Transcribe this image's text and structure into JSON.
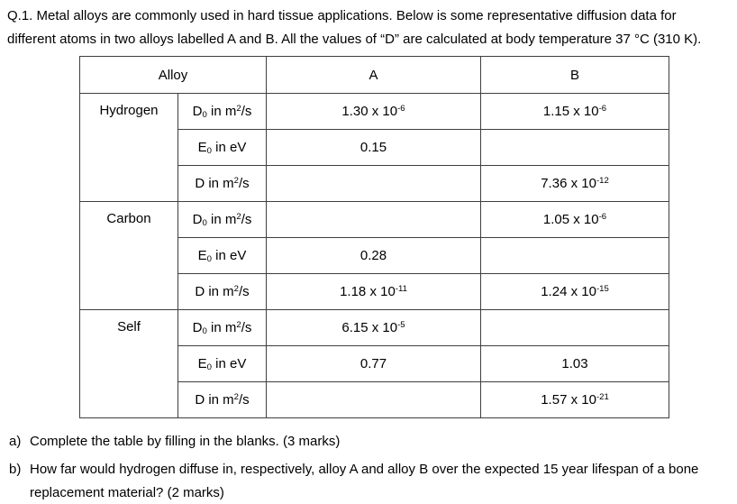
{
  "page": {
    "background_color": "#ffffff",
    "text_color": "#000000",
    "table_border_color": "#3f3f3f"
  },
  "intro": {
    "lines": [
      "Q.1. Metal alloys are commonly used in hard tissue applications. Below is some representative diffusion data for",
      "different atoms in two alloys labelled A and B. All the values of “D” are calculated at body temperature 37 °C (310 K)."
    ]
  },
  "table": {
    "header": {
      "alloy_label": "Alloy",
      "col_a_label": "A",
      "col_b_label": "B"
    },
    "groups": [
      {
        "element": "Hydrogen",
        "rows": [
          {
            "property": [
              {
                "t": "D"
              },
              {
                "sub": "0"
              },
              {
                "t": " in m"
              },
              {
                "sup": "2"
              },
              {
                "t": "/s"
              }
            ],
            "a": [
              {
                "t": "1.30 x 10"
              },
              {
                "sup": "-6"
              }
            ],
            "b": [
              {
                "t": "1.15 x 10"
              },
              {
                "sup": "-6"
              }
            ]
          },
          {
            "property": [
              {
                "t": "E"
              },
              {
                "sub": "0"
              },
              {
                "t": " in eV"
              }
            ],
            "a": [
              {
                "t": "0.15"
              }
            ],
            "b": []
          },
          {
            "property": [
              {
                "t": "D in m"
              },
              {
                "sup": "2"
              },
              {
                "t": "/s"
              }
            ],
            "a": [],
            "b": [
              {
                "t": "7.36 x 10"
              },
              {
                "sup": "-12"
              }
            ]
          }
        ]
      },
      {
        "element": "Carbon",
        "rows": [
          {
            "property": [
              {
                "t": "D"
              },
              {
                "sub": "0"
              },
              {
                "t": " in m"
              },
              {
                "sup": "2"
              },
              {
                "t": "/s"
              }
            ],
            "a": [],
            "b": [
              {
                "t": "1.05 x 10"
              },
              {
                "sup": "-6"
              }
            ]
          },
          {
            "property": [
              {
                "t": "E"
              },
              {
                "sub": "0"
              },
              {
                "t": " in eV"
              }
            ],
            "a": [
              {
                "t": "0.28"
              }
            ],
            "b": []
          },
          {
            "property": [
              {
                "t": "D in m"
              },
              {
                "sup": "2"
              },
              {
                "t": "/s"
              }
            ],
            "a": [
              {
                "t": "1.18 x 10"
              },
              {
                "sup": "-11"
              }
            ],
            "b": [
              {
                "t": "1.24 x 10"
              },
              {
                "sup": "-15"
              }
            ]
          }
        ]
      },
      {
        "element": "Self",
        "rows": [
          {
            "property": [
              {
                "t": "D"
              },
              {
                "sub": "0"
              },
              {
                "t": " in m"
              },
              {
                "sup": "2"
              },
              {
                "t": "/s"
              }
            ],
            "a": [
              {
                "t": "6.15 x 10"
              },
              {
                "sup": "-5"
              }
            ],
            "b": []
          },
          {
            "property": [
              {
                "t": "E"
              },
              {
                "sub": "0"
              },
              {
                "t": " in eV"
              }
            ],
            "a": [
              {
                "t": "0.77"
              }
            ],
            "b": [
              {
                "t": "1.03"
              }
            ]
          },
          {
            "property": [
              {
                "t": "D in m"
              },
              {
                "sup": "2"
              },
              {
                "t": "/s"
              }
            ],
            "a": [],
            "b": [
              {
                "t": "1.57 x 10"
              },
              {
                "sup": "-21"
              }
            ]
          }
        ]
      }
    ]
  },
  "questions": [
    {
      "label": "a)",
      "lines": [
        "Complete the table by filling in the blanks. (3 marks)"
      ]
    },
    {
      "label": "b)",
      "lines": [
        "How far would hydrogen diffuse in, respectively, alloy A and alloy B over the expected 15 year lifespan of a bone",
        "replacement material? (2 marks)"
      ]
    }
  ]
}
